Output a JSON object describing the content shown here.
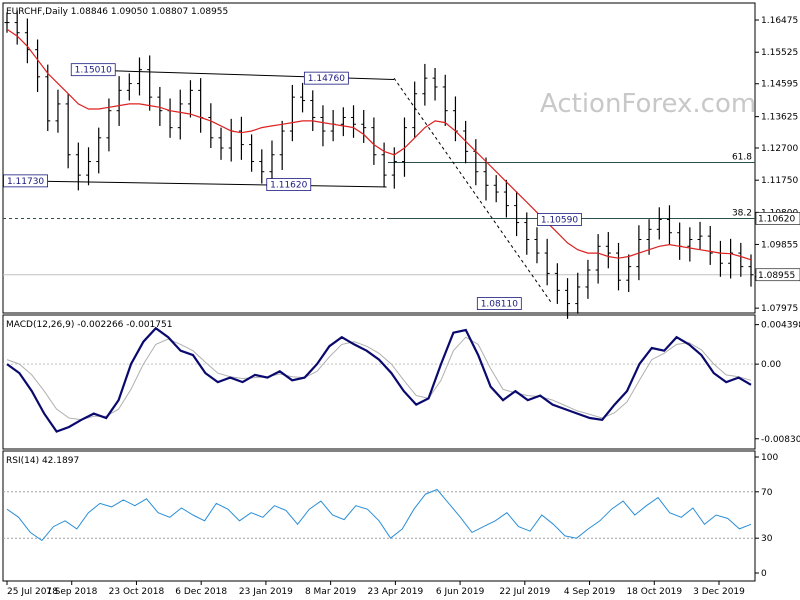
{
  "watermark": "ActionForex.com",
  "chart_data": [
    {
      "type": "ohlc",
      "title": "EURCHF,Daily",
      "ohlc_header": "1.08846 1.09050 1.08807 1.08955",
      "x_tick_labels": [
        "25 Jul 2018",
        "7 Sep 2018",
        "23 Oct 2018",
        "6 Dec 2018",
        "23 Jan 2019",
        "8 Mar 2019",
        "23 Apr 2019",
        "6 Jun 2019",
        "22 Jul 2019",
        "4 Sep 2019",
        "18 Oct 2019",
        "3 Dec 2019"
      ],
      "y_tick_labels": [
        "1.16475",
        "1.15525",
        "1.14595",
        "1.13625",
        "1.12700",
        "1.11750",
        "1.10800",
        "1.09855",
        "1.08905",
        "1.07975"
      ],
      "ylim": [
        1.0795,
        1.168
      ],
      "current_price": "1.08955",
      "series": [
        {
          "name": "",
          "color": "#000000",
          "values": [
            1.164,
            1.161,
            1.156,
            1.148,
            1.135,
            1.14,
            1.125,
            1.119,
            1.123,
            1.13,
            1.138,
            1.144,
            1.146,
            1.1501,
            1.142,
            1.138,
            1.133,
            1.14,
            1.144,
            1.136,
            1.13,
            1.127,
            1.132,
            1.128,
            1.123,
            1.12,
            1.125,
            1.132,
            1.142,
            1.141,
            1.136,
            1.132,
            1.134,
            1.136,
            1.134,
            1.133,
            1.125,
            1.119,
            1.123,
            1.133,
            1.143,
            1.1476,
            1.145,
            1.138,
            1.132,
            1.126,
            1.12,
            1.116,
            1.114,
            1.11,
            1.105,
            1.1,
            1.096,
            1.09,
            1.085,
            1.0811,
            1.086,
            1.091,
            1.098,
            1.096,
            1.088,
            1.092,
            1.1,
            1.103,
            1.1059,
            1.102,
            1.098,
            1.1,
            1.101,
            1.096,
            1.093,
            1.096,
            1.092,
            1.0896
          ]
        }
      ],
      "moving_average": {
        "color": "#dd2020",
        "values": [
          1.162,
          1.16,
          1.157,
          1.153,
          1.149,
          1.146,
          1.143,
          1.14,
          1.1385,
          1.1385,
          1.139,
          1.1395,
          1.14,
          1.14,
          1.1395,
          1.139,
          1.138,
          1.1375,
          1.137,
          1.136,
          1.135,
          1.1335,
          1.132,
          1.1315,
          1.132,
          1.133,
          1.1335,
          1.134,
          1.1345,
          1.135,
          1.135,
          1.1345,
          1.134,
          1.1335,
          1.133,
          1.131,
          1.128,
          1.126,
          1.125,
          1.127,
          1.13,
          1.133,
          1.135,
          1.1345,
          1.132,
          1.129,
          1.126,
          1.123,
          1.12,
          1.117,
          1.114,
          1.111,
          1.108,
          1.105,
          1.102,
          1.099,
          1.097,
          1.096,
          1.096,
          1.095,
          1.0945,
          1.095,
          1.096,
          1.097,
          1.098,
          1.0985,
          1.098,
          1.0975,
          1.097,
          1.0965,
          1.096,
          1.0958,
          1.095,
          1.094
        ]
      },
      "horizontal_levels": [
        {
          "label": "61.8",
          "value": 1.1227
        },
        {
          "label": "38.2",
          "value": 1.1062,
          "price_tag": "1.10620"
        }
      ],
      "reference_line": {
        "value": 1.0896
      },
      "trendlines": [
        {
          "from": {
            "x": 0.1,
            "y": 1.1501
          },
          "to": {
            "x": 0.52,
            "y": 1.1472
          }
        },
        {
          "from": {
            "x": 0.02,
            "y": 1.1173
          },
          "to": {
            "x": 0.51,
            "y": 1.1155
          }
        },
        {
          "from": {
            "x": 0.52,
            "y": 1.1476
          },
          "to": {
            "x": 0.73,
            "y": 1.0811
          },
          "dashed": true
        }
      ],
      "annotations": [
        {
          "text": "1.15010",
          "x": 0.12,
          "y": 1.1501
        },
        {
          "text": "1.14760",
          "x": 0.43,
          "y": 1.1476
        },
        {
          "text": "1.11730",
          "x": 0.03,
          "y": 1.1173
        },
        {
          "text": "1.11620",
          "x": 0.38,
          "y": 1.1162
        },
        {
          "text": "1.10590",
          "x": 0.74,
          "y": 1.1059
        },
        {
          "text": "1.08110",
          "x": 0.66,
          "y": 1.0811
        }
      ]
    },
    {
      "type": "line",
      "title": "MACD(12,26,9) -0.002266 -0.001751",
      "y_tick_labels": [
        "0.004398",
        "0.00",
        "-0.008306"
      ],
      "ylim": [
        -0.009,
        0.0048
      ],
      "series": [
        {
          "name": "",
          "color": "#0a0a6e",
          "values": [
            0.0,
            -0.001,
            -0.003,
            -0.0055,
            -0.0075,
            -0.007,
            -0.0062,
            -0.0055,
            -0.006,
            -0.004,
            0.0,
            0.0025,
            0.004,
            0.003,
            0.0015,
            0.001,
            -0.001,
            -0.002,
            -0.0015,
            -0.002,
            -0.0012,
            -0.0015,
            -0.0008,
            -0.0018,
            -0.0015,
            0.0,
            0.002,
            0.003,
            0.0022,
            0.0015,
            0.0005,
            -0.001,
            -0.003,
            -0.0045,
            -0.0038,
            0.0,
            0.0035,
            0.0038,
            0.001,
            -0.0025,
            -0.004,
            -0.003,
            -0.004,
            -0.0035,
            -0.0045,
            -0.005,
            -0.0055,
            -0.006,
            -0.0062,
            -0.0045,
            -0.003,
            0.0,
            0.0018,
            0.0015,
            0.003,
            0.0022,
            0.001,
            -0.001,
            -0.002,
            -0.0015,
            -0.0023
          ]
        },
        {
          "name": "",
          "color": "#b0b0b0",
          "values": [
            0.0005,
            0.0,
            -0.0012,
            -0.003,
            -0.005,
            -0.006,
            -0.0062,
            -0.0058,
            -0.0058,
            -0.005,
            -0.0028,
            0.0,
            0.0022,
            0.0028,
            0.0022,
            0.0015,
            0.0002,
            -0.001,
            -0.0014,
            -0.0016,
            -0.0015,
            -0.0014,
            -0.0011,
            -0.0014,
            -0.0015,
            -0.0008,
            0.0008,
            0.0022,
            0.0025,
            0.002,
            0.0012,
            0.0,
            -0.0018,
            -0.0035,
            -0.0038,
            -0.0018,
            0.0015,
            0.003,
            0.0022,
            -0.0005,
            -0.0028,
            -0.0032,
            -0.0035,
            -0.0036,
            -0.004,
            -0.0046,
            -0.0052,
            -0.0056,
            -0.006,
            -0.0054,
            -0.0042,
            -0.0018,
            0.0005,
            0.0012,
            0.0022,
            0.0024,
            0.0016,
            0.0,
            -0.0012,
            -0.0014,
            -0.0018
          ]
        }
      ]
    },
    {
      "type": "line",
      "title": "RSI(14) 42.1897",
      "y_tick_labels": [
        "100",
        "70",
        "30",
        "0"
      ],
      "ylim": [
        0,
        100
      ],
      "levels": [
        70,
        30
      ],
      "series": [
        {
          "name": "",
          "color": "#2a8fd8",
          "values": [
            55,
            48,
            35,
            28,
            40,
            45,
            38,
            52,
            60,
            57,
            63,
            58,
            64,
            52,
            48,
            56,
            50,
            45,
            60,
            55,
            45,
            52,
            48,
            58,
            54,
            42,
            55,
            62,
            50,
            46,
            58,
            55,
            45,
            30,
            38,
            55,
            68,
            72,
            60,
            48,
            35,
            40,
            45,
            52,
            40,
            36,
            50,
            42,
            32,
            30,
            38,
            45,
            55,
            62,
            50,
            58,
            65,
            52,
            48,
            56,
            42,
            50,
            47,
            38,
            42
          ]
        }
      ]
    }
  ]
}
